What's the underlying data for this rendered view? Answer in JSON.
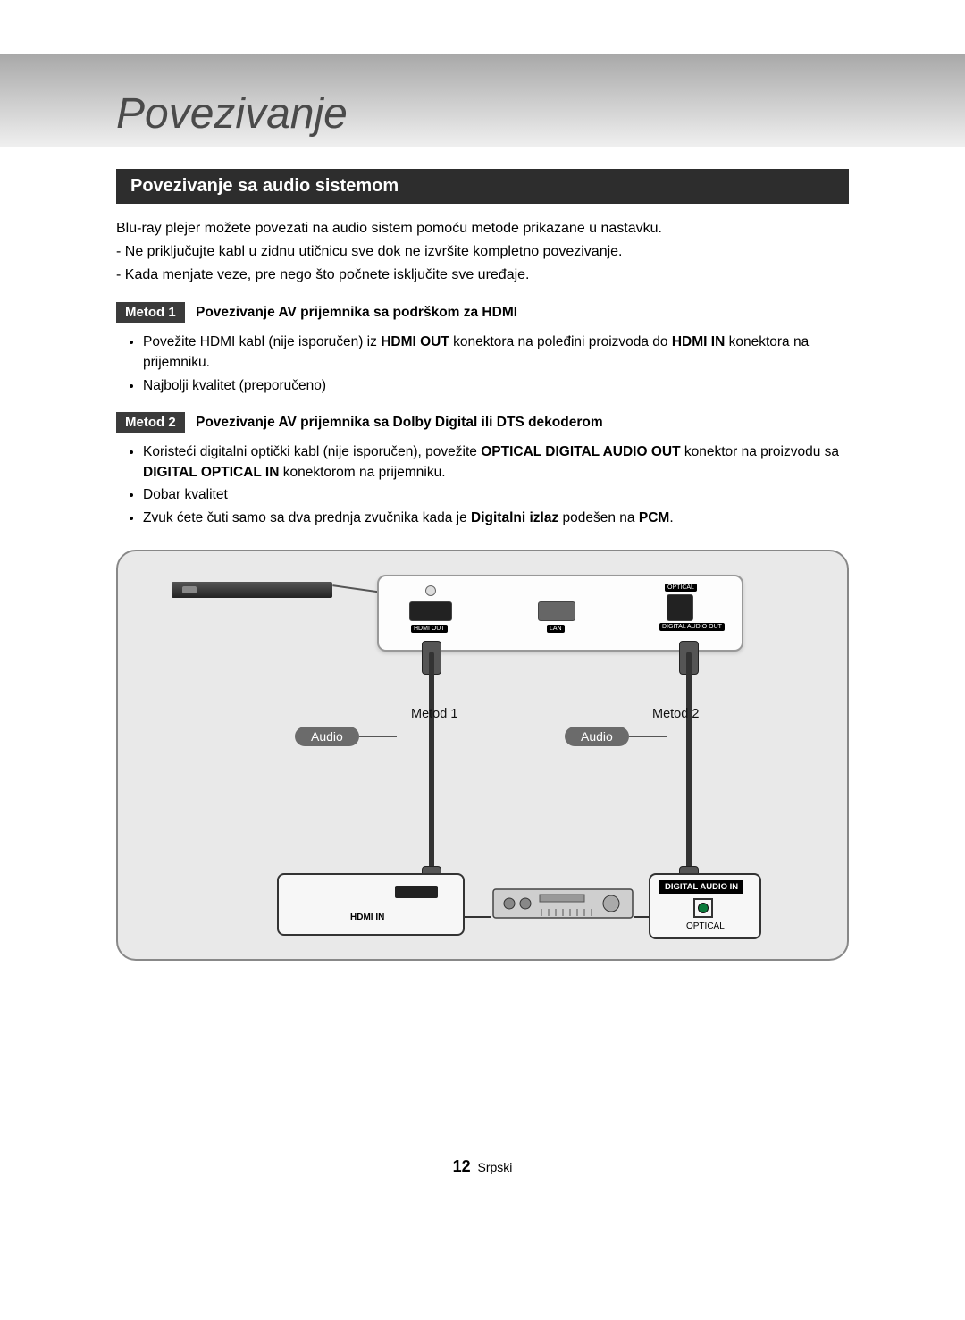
{
  "page": {
    "title": "Povezivanje",
    "section_heading": "Povezivanje sa audio sistemom",
    "intro": "Blu-ray plejer možete povezati na audio sistem pomoću metode prikazane u nastavku.",
    "intro_sub1": "-  Ne priključujte kabl u zidnu utičnicu sve dok ne izvršite kompletno povezivanje.",
    "intro_sub2": "-  Kada menjate veze, pre nego što počnete isključite sve uređaje.",
    "method1": {
      "badge": "Metod 1",
      "title": "Povezivanje AV prijemnika sa podrškom za HDMI",
      "bullets": [
        "Povežite HDMI kabl (nije isporučen) iz <b>HDMI OUT</b> konektora na poleđini proizvoda do <b>HDMI IN</b> konektora na prijemniku.",
        "Najbolji kvalitet (preporučeno)"
      ]
    },
    "method2": {
      "badge": "Metod 2",
      "title": "Povezivanje AV prijemnika sa Dolby Digital ili DTS dekoderom",
      "bullets": [
        "Koristeći digitalni optički kabl (nije isporučen), povežite <b>OPTICAL DIGITAL AUDIO OUT</b> konektor na proizvodu sa <b>DIGITAL OPTICAL IN</b> konektorom na prijemniku.",
        "Dobar kvalitet",
        "Zvuk ćete čuti samo sa dva prednja zvučnika kada je <b>Digitalni izlaz</b> podešen na <b>PCM</b>."
      ]
    },
    "diagram": {
      "port_labels": {
        "hdmi_out": "HDMI OUT",
        "lan": "LAN",
        "digital_audio_out": "DIGITAL\nAUDIO OUT",
        "optical_small": "OPTICAL"
      },
      "method1_tag": "Metod 1",
      "method2_tag": "Metod 2",
      "audio_pill": "Audio",
      "hdmi_in": "HDMI IN",
      "digital_audio_in": "DIGITAL AUDIO IN",
      "optical": "OPTICAL"
    },
    "footer": {
      "page_number": "12",
      "lang": "Srpski"
    }
  },
  "style": {
    "section_bar_bg": "#2d2d2d",
    "method_badge_bg": "#3b3b3b",
    "diagram_bg": "#e9e9e9",
    "diagram_border": "#888888",
    "pill_bg": "#6b6b6b",
    "title_color": "#4a4a4a"
  }
}
